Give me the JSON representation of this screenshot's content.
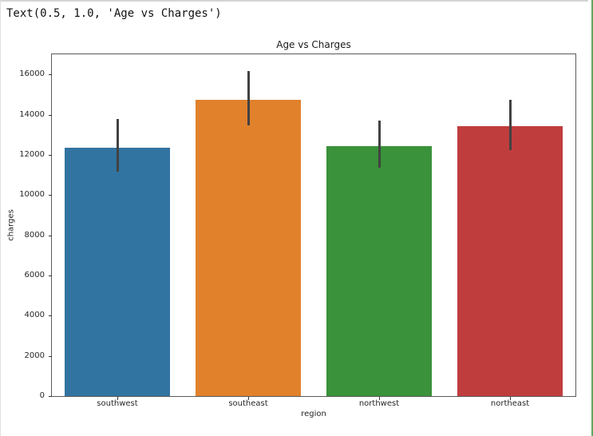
{
  "output_text": "Text(0.5, 1.0, 'Age vs Charges')",
  "page": {
    "top_border_color": "#d4d4d4",
    "left_border_color": "#e0e0e0",
    "active_cell_indicator_color": "#5faa5f",
    "background_color": "#ffffff"
  },
  "chart_data": {
    "type": "bar",
    "title": "Age vs Charges",
    "xlabel": "region",
    "ylabel": "charges",
    "categories": [
      "southwest",
      "southeast",
      "northwest",
      "northeast"
    ],
    "values": [
      12346.94,
      14735.41,
      12417.58,
      13406.38
    ],
    "error_low": [
      11150,
      13450,
      11350,
      12230
    ],
    "error_high": [
      13800,
      16150,
      13720,
      14750
    ],
    "bar_colors": [
      "#3274a1",
      "#e1812c",
      "#3a923a",
      "#c03d3e"
    ],
    "error_color": "#424242",
    "ylim": [
      0,
      17000
    ],
    "yticks": [
      0,
      2000,
      4000,
      6000,
      8000,
      10000,
      12000,
      14000,
      16000
    ],
    "grid": false,
    "legend": null,
    "bar_width_fraction": 0.8
  }
}
